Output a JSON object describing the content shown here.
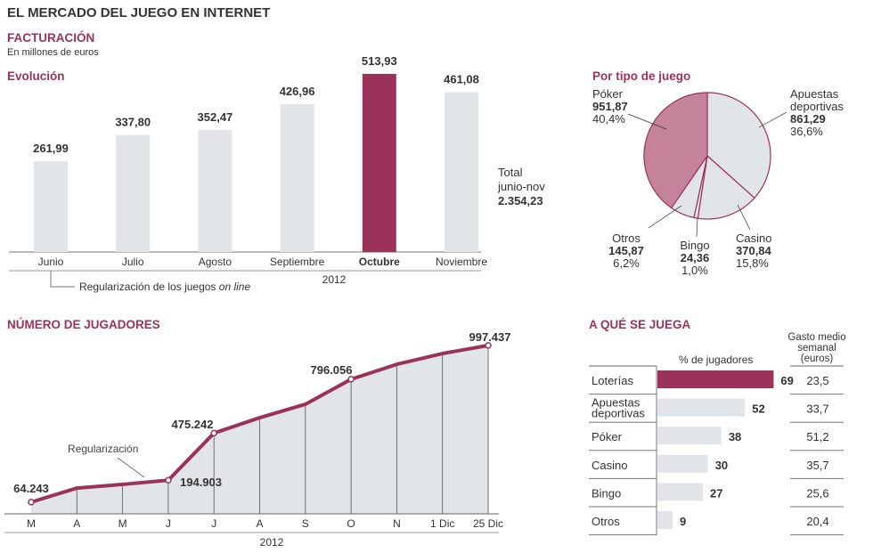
{
  "title": "EL MERCADO DEL JUEGO EN INTERNET",
  "billing": {
    "heading": "FACTURACIÓN",
    "units": "En millones de euros",
    "evolution_label": "Evolución",
    "total_line1": "Total",
    "total_line2": "junio-nov",
    "total_value": "2.354,23",
    "note_text": "Regularización de los juegos ",
    "note_italic": "on line"
  },
  "pie_heading": "Por tipo de juego",
  "players_heading": "NÚMERO DE JUGADORES",
  "regularizacion": "Regularización",
  "games_heading": "A QUÉ SE JUEGA",
  "games_col1": "% de jugadores",
  "games_col2_l1": "Gasto medio",
  "games_col2_l2": "semanal",
  "games_col2_l3": "(euros)",
  "colors": {
    "accent": "#9b3259",
    "gray": "#e1e5e8",
    "poker": "#c4829b"
  },
  "chart_data": [
    {
      "type": "bar",
      "title": "Evolución",
      "categories": [
        "Junio",
        "Julio",
        "Agosto",
        "Septiembre",
        "Octubre",
        "Noviembre"
      ],
      "values": [
        261.99,
        337.8,
        352.47,
        426.96,
        513.93,
        461.08
      ],
      "labels": [
        "261,99",
        "337,80",
        "352,47",
        "426,96",
        "513,93",
        "461,08"
      ],
      "highlight": 4,
      "xlabel": "2012",
      "ylim": [
        0,
        513.93
      ]
    },
    {
      "type": "pie",
      "title": "Por tipo de juego",
      "slices": [
        {
          "name": "Apuestas deportivas",
          "value": 861.29,
          "value_label": "861,29",
          "pct": "36,6%",
          "share": 36.6
        },
        {
          "name": "Casino",
          "value": 370.84,
          "value_label": "370,84",
          "pct": "15,8%",
          "share": 15.8
        },
        {
          "name": "Bingo",
          "value": 24.36,
          "value_label": "24,36",
          "pct": "1,0%",
          "share": 1.0
        },
        {
          "name": "Otros",
          "value": 145.87,
          "value_label": "145,87",
          "pct": "6,2%",
          "share": 6.2
        },
        {
          "name": "Póker",
          "value": 951.87,
          "value_label": "951,87",
          "pct": "40,4%",
          "share": 40.4
        }
      ]
    },
    {
      "type": "area",
      "title": "NÚMERO DE JUGADORES",
      "xlabel": "2012",
      "x": [
        "M",
        "A",
        "M",
        "J",
        "J",
        "A",
        "S",
        "O",
        "N",
        "1 Dic",
        "25 Dic"
      ],
      "values": [
        64243,
        148000,
        170000,
        194903,
        475242,
        567000,
        647000,
        796056,
        885000,
        949000,
        997437
      ],
      "labels": [
        "64.243",
        "",
        "",
        "194.903",
        "475.242",
        "",
        "",
        "796.056",
        "",
        "",
        "997.437"
      ],
      "ylim": [
        0,
        1000000
      ]
    },
    {
      "type": "bar",
      "title": "A QUÉ SE JUEGA",
      "categories": [
        "Loterías",
        "Apuestas deportivas",
        "Póker",
        "Casino",
        "Bingo",
        "Otros"
      ],
      "values": [
        69,
        52,
        38,
        30,
        27,
        9
      ],
      "spend": [
        "23,5",
        "33,7",
        "51,2",
        "35,7",
        "25,6",
        "20,4"
      ],
      "highlight": 0
    }
  ]
}
